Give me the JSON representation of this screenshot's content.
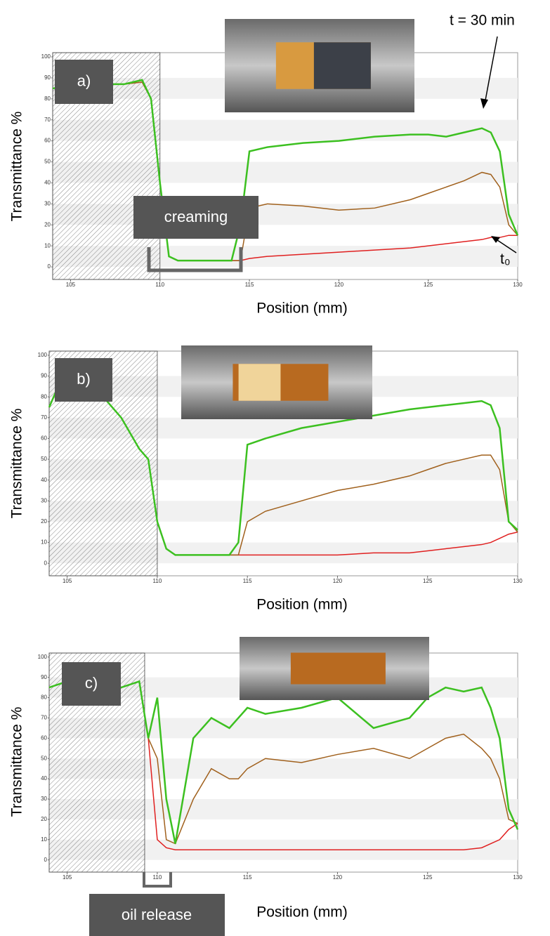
{
  "chart_data": [
    {
      "type": "line",
      "label": "a)",
      "ylabel": "Transmittance %",
      "xlabel": "Position (mm)",
      "annotations": [
        "creaming",
        "t = 30 min",
        "t₀"
      ],
      "xlim": [
        104,
        130
      ],
      "ylim": [
        -6,
        102
      ],
      "xticks": [
        105,
        110,
        115,
        120,
        125,
        130
      ],
      "yticks": [
        0,
        10,
        20,
        30,
        40,
        50,
        60,
        70,
        80,
        90,
        100
      ],
      "grid": true,
      "hatch_xlim": [
        104,
        110
      ],
      "x": [
        104,
        105,
        106,
        107,
        108,
        109,
        109.5,
        110,
        110.5,
        111,
        112,
        113,
        114,
        114.5,
        115,
        116,
        118,
        120,
        122,
        124,
        125,
        126,
        127,
        128,
        128.5,
        129,
        129.5,
        130
      ],
      "series": [
        {
          "color": "#e02020",
          "values": [
            85,
            86,
            86,
            87,
            87,
            88,
            80,
            40,
            5,
            3,
            3,
            3,
            3,
            3,
            4,
            5,
            6,
            7,
            8,
            9,
            10,
            11,
            12,
            13,
            14,
            14,
            15,
            15
          ]
        },
        {
          "color": "#a0601c",
          "values": [
            85,
            86,
            86,
            87,
            87,
            88,
            80,
            40,
            5,
            3,
            3,
            3,
            3,
            3,
            28,
            30,
            29,
            27,
            28,
            32,
            35,
            38,
            41,
            45,
            44,
            38,
            20,
            15
          ]
        },
        {
          "color": "#3cc020",
          "values": [
            85,
            86,
            86,
            87,
            87,
            89,
            80,
            40,
            5,
            3,
            3,
            3,
            3,
            20,
            55,
            57,
            59,
            60,
            62,
            63,
            63,
            62,
            64,
            66,
            64,
            55,
            25,
            15
          ]
        }
      ]
    },
    {
      "type": "line",
      "label": "b)",
      "ylabel": "Transmittance %",
      "xlabel": "Position (mm)",
      "xlim": [
        104,
        130
      ],
      "ylim": [
        -6,
        102
      ],
      "xticks": [
        105,
        110,
        115,
        120,
        125,
        130
      ],
      "yticks": [
        0,
        10,
        20,
        30,
        40,
        50,
        60,
        70,
        80,
        90,
        100
      ],
      "grid": true,
      "hatch_xlim": [
        104,
        110
      ],
      "x": [
        104,
        105,
        106,
        107,
        108,
        109,
        109.5,
        110,
        110.5,
        111,
        112,
        113,
        114,
        114.5,
        115,
        116,
        118,
        120,
        122,
        124,
        125,
        126,
        127,
        128,
        128.5,
        129,
        129.5,
        130
      ],
      "series": [
        {
          "color": "#e02020",
          "values": [
            75,
            95,
            85,
            80,
            70,
            55,
            50,
            20,
            7,
            4,
            4,
            4,
            4,
            4,
            4,
            4,
            4,
            4,
            5,
            5,
            6,
            7,
            8,
            9,
            10,
            12,
            14,
            15
          ]
        },
        {
          "color": "#a0601c",
          "values": [
            75,
            95,
            85,
            80,
            70,
            55,
            50,
            20,
            7,
            4,
            4,
            4,
            4,
            4,
            20,
            25,
            30,
            35,
            38,
            42,
            45,
            48,
            50,
            52,
            52,
            45,
            20,
            15
          ]
        },
        {
          "color": "#3cc020",
          "values": [
            75,
            95,
            85,
            80,
            70,
            55,
            50,
            20,
            7,
            4,
            4,
            4,
            4,
            10,
            57,
            60,
            65,
            68,
            71,
            74,
            75,
            76,
            77,
            78,
            76,
            65,
            20,
            16
          ]
        }
      ]
    },
    {
      "type": "line",
      "label": "c)",
      "ylabel": "Transmittance %",
      "xlabel": "Position (mm)",
      "annotations": [
        "oil release"
      ],
      "xlim": [
        104,
        130
      ],
      "ylim": [
        -6,
        102
      ],
      "xticks": [
        105,
        110,
        115,
        120,
        125,
        130
      ],
      "yticks": [
        0,
        10,
        20,
        30,
        40,
        50,
        60,
        70,
        80,
        90,
        100
      ],
      "grid": true,
      "hatch_xlim": [
        104,
        109.3
      ],
      "x": [
        104,
        105,
        106,
        107,
        108,
        109,
        109.5,
        110,
        110.5,
        111,
        112,
        113,
        114,
        114.5,
        115,
        116,
        118,
        120,
        122,
        124,
        125,
        126,
        127,
        128,
        128.5,
        129,
        129.5,
        130
      ],
      "series": [
        {
          "color": "#e02020",
          "values": [
            85,
            88,
            87,
            88,
            85,
            88,
            60,
            10,
            6,
            5,
            5,
            5,
            5,
            5,
            5,
            5,
            5,
            5,
            5,
            5,
            5,
            5,
            5,
            6,
            8,
            10,
            15,
            18
          ]
        },
        {
          "color": "#a0601c",
          "values": [
            85,
            88,
            87,
            88,
            85,
            88,
            60,
            50,
            10,
            8,
            30,
            45,
            40,
            40,
            45,
            50,
            48,
            52,
            55,
            50,
            55,
            60,
            62,
            55,
            50,
            40,
            20,
            18
          ]
        },
        {
          "color": "#3cc020",
          "values": [
            85,
            88,
            87,
            88,
            85,
            88,
            60,
            80,
            30,
            8,
            60,
            70,
            65,
            70,
            75,
            72,
            75,
            80,
            65,
            70,
            80,
            85,
            83,
            85,
            75,
            60,
            25,
            15
          ]
        }
      ]
    }
  ]
}
